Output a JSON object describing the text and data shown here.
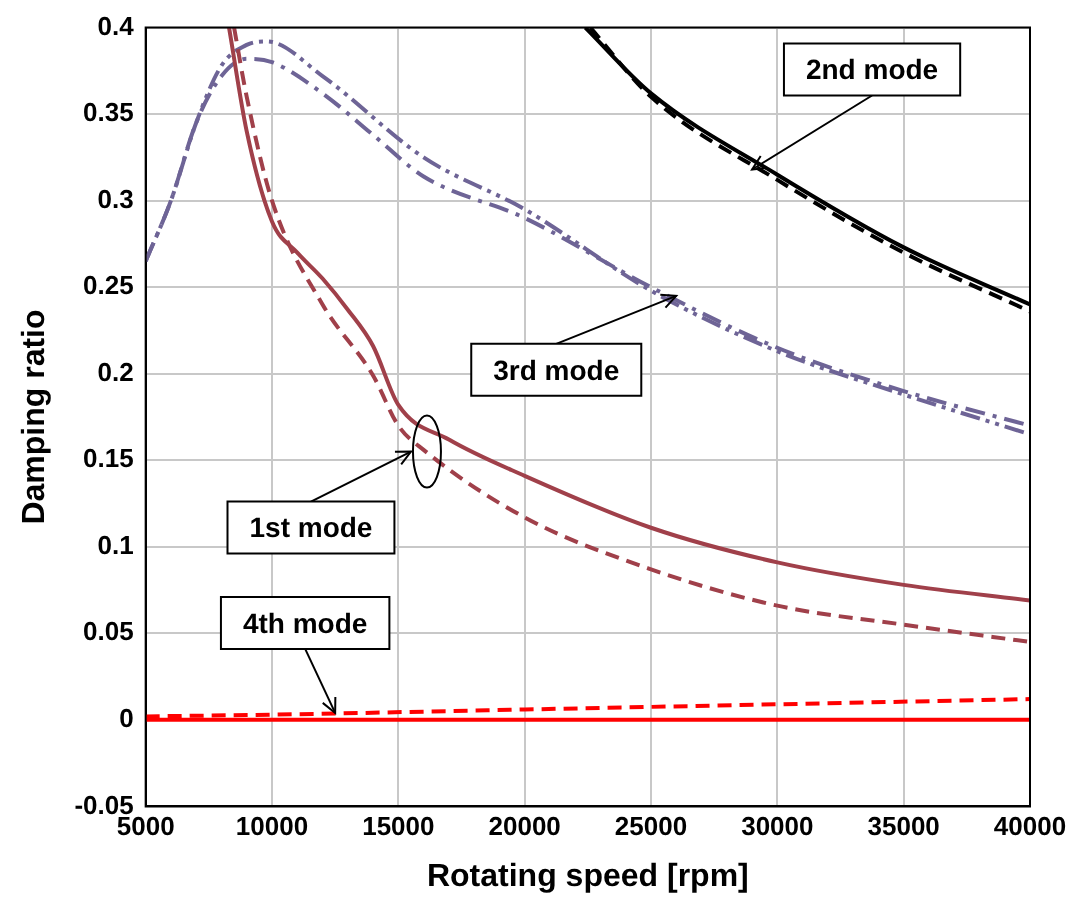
{
  "chart_data": {
    "type": "line",
    "xlabel": "Rotating speed [rpm]",
    "ylabel": "Damping ratio",
    "xlim": [
      5000,
      40000
    ],
    "xticks": [
      5000,
      10000,
      15000,
      20000,
      25000,
      30000,
      35000,
      40000
    ],
    "ylim": [
      -0.05,
      0.4
    ],
    "yticks": [
      -0.05,
      0,
      0.05,
      0.1,
      0.15,
      0.2,
      0.25,
      0.3,
      0.35,
      0.4
    ],
    "grid": true,
    "legend": false,
    "marker": "none",
    "series": [
      {
        "color": "#a0404a",
        "line_style": "solid",
        "x": [
          8300,
          9000,
          10000,
          11000,
          12000,
          13000,
          14000,
          15000,
          17000,
          20000,
          25000,
          30000,
          35000,
          40000
        ],
        "values": [
          0.4,
          0.34,
          0.288,
          0.27,
          0.255,
          0.237,
          0.216,
          0.182,
          0.162,
          0.141,
          0.111,
          0.091,
          0.078,
          0.069
        ]
      },
      {
        "color": "#a0404a",
        "line_style": "dashed",
        "x": [
          8500,
          9000,
          10000,
          12000,
          14000,
          15000,
          16000,
          20000,
          25000,
          30000,
          35000,
          40000
        ],
        "values": [
          0.4,
          0.36,
          0.3,
          0.24,
          0.199,
          0.17,
          0.156,
          0.117,
          0.087,
          0.066,
          0.055,
          0.045
        ]
      },
      {
        "color": "#000000",
        "line_style": "solid",
        "x": [
          22400,
          25000,
          30000,
          35000,
          40000
        ],
        "values": [
          0.4,
          0.362,
          0.315,
          0.273,
          0.24
        ]
      },
      {
        "color": "#000000",
        "line_style": "dashed",
        "x": [
          22600,
          25000,
          30000,
          35000,
          40000
        ],
        "values": [
          0.4,
          0.36,
          0.312,
          0.27,
          0.236
        ]
      },
      {
        "color": "#6e6496",
        "line_style": "dashdot",
        "x": [
          5000,
          6000,
          7000,
          8000,
          9000,
          10000,
          12000,
          14000,
          16000,
          20000,
          25000,
          30000,
          35000,
          40000
        ],
        "values": [
          0.265,
          0.3,
          0.345,
          0.372,
          0.382,
          0.38,
          0.362,
          0.338,
          0.314,
          0.29,
          0.25,
          0.215,
          0.19,
          0.17
        ]
      },
      {
        "color": "#6e6496",
        "line_style": "dashdotdot",
        "x": [
          5000,
          6000,
          7000,
          8000,
          9000,
          9800,
          12000,
          16000,
          20000,
          25000,
          30000,
          35000,
          40000
        ],
        "values": [
          0.265,
          0.3,
          0.345,
          0.378,
          0.39,
          0.392,
          0.372,
          0.325,
          0.295,
          0.248,
          0.213,
          0.188,
          0.165
        ]
      },
      {
        "color": "#ff0000",
        "line_style": "solid",
        "x": [
          5000,
          40000
        ],
        "values": [
          0,
          0
        ]
      },
      {
        "color": "#ff0000",
        "line_style": "dashed",
        "x": [
          5000,
          10000,
          20000,
          30000,
          40000
        ],
        "values": [
          0.002,
          0.003,
          0.006,
          0.009,
          0.012
        ]
      }
    ],
    "annotations": [
      {
        "text": "2nd mode",
        "x": 29000,
        "y": 0.318
      },
      {
        "text": "3rd mode",
        "x": 26000,
        "y": 0.245
      },
      {
        "text": "1st mode",
        "x": 15500,
        "y": 0.155
      },
      {
        "text": "4th mode",
        "x": 12500,
        "y": 0.004
      }
    ]
  }
}
